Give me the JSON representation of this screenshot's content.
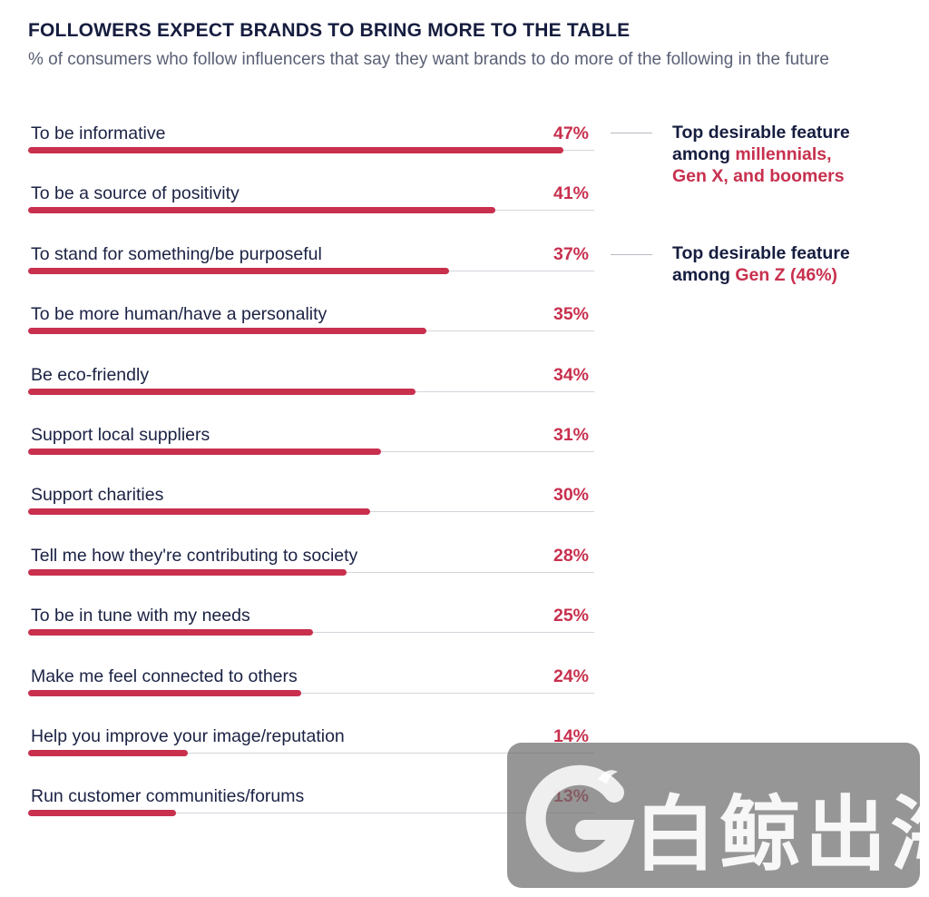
{
  "header": {
    "title": "FOLLOWERS EXPECT BRANDS TO BRING MORE TO THE TABLE",
    "subtitle": "% of consumers who follow influencers that say they want brands to do more of the following in the future"
  },
  "chart_data": {
    "type": "bar",
    "orientation": "horizontal",
    "title": "FOLLOWERS EXPECT BRANDS TO BRING MORE TO THE TABLE",
    "subtitle": "% of consumers who follow influencers that say they want brands to do more of the following in the future",
    "categories": [
      "To be informative",
      "To be a source of positivity",
      "To stand for something/be purposeful",
      "To be more human/have a personality",
      "Be eco-friendly",
      "Support local suppliers",
      "Support charities",
      "Tell me how they're contributing to society",
      "To be in tune with my needs",
      "Make me feel connected to others",
      "Help you improve your image/reputation",
      "Run customer communities/forums"
    ],
    "values": [
      47,
      41,
      37,
      35,
      34,
      31,
      30,
      28,
      25,
      24,
      14,
      13
    ],
    "value_labels": [
      "47%",
      "41%",
      "37%",
      "35%",
      "34%",
      "31%",
      "30%",
      "28%",
      "25%",
      "24%",
      "14%",
      "13%"
    ],
    "xlim": [
      0,
      50
    ],
    "bar_color": "#c8304e",
    "annotations": [
      {
        "category_index": 0,
        "line1": "Top desirable feature",
        "line2_plain": "among ",
        "line2_highlight": "millennials,",
        "line3_highlight": "Gen X, and boomers"
      },
      {
        "category_index": 2,
        "line1": "Top desirable feature",
        "line2_plain": "among ",
        "line2_highlight": "Gen Z (46%)"
      }
    ]
  },
  "colors": {
    "accent": "#c8304e",
    "title": "#161d3f",
    "subtitle": "#5a6075",
    "gridline": "#d3d5db"
  },
  "watermark": {
    "text": "白鲸出海",
    "logo_icon": "whale-g-logo-icon"
  }
}
